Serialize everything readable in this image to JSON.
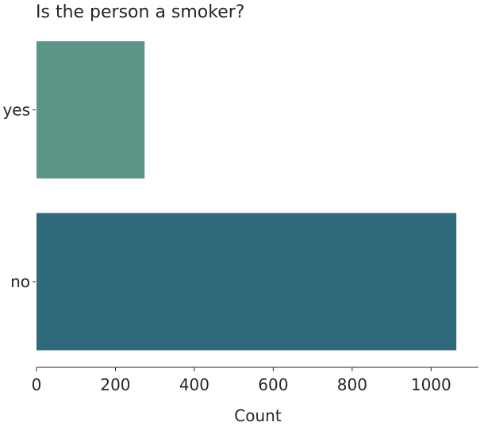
{
  "chart_data": {
    "type": "bar",
    "orientation": "horizontal",
    "title": "Is the person a smoker?",
    "xlabel": "Count",
    "ylabel": "",
    "categories": [
      "yes",
      "no"
    ],
    "values": [
      274,
      1064
    ],
    "colors": [
      "#5b9688",
      "#2d687b"
    ],
    "xlim": [
      0,
      1120
    ],
    "xticks": [
      0,
      200,
      400,
      600,
      800,
      1000
    ],
    "xtick_labels": [
      "0",
      "200",
      "400",
      "600",
      "800",
      "1000"
    ],
    "grid": false,
    "legend": "none"
  }
}
